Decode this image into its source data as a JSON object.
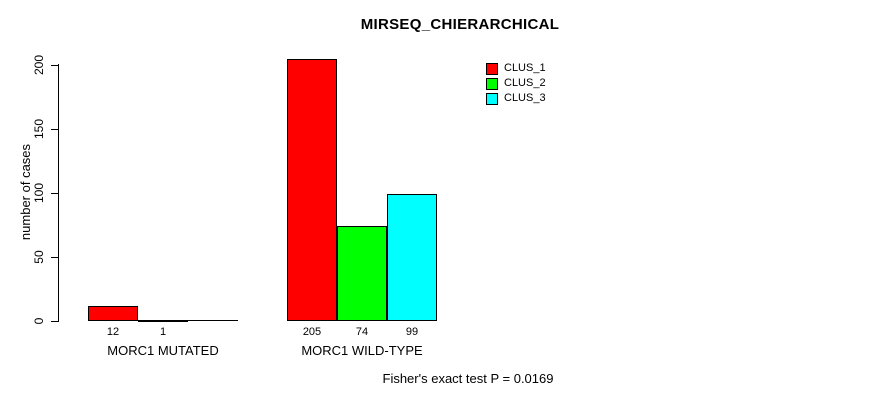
{
  "chart_data": {
    "type": "bar",
    "title": "MIRSEQ_CHIERARCHICAL",
    "ylabel": "number of cases",
    "xlabel": "",
    "ylim": [
      0,
      205
    ],
    "yticks": [
      0,
      50,
      100,
      150,
      200
    ],
    "grid": false,
    "legend_position": "top-right",
    "legend_border": false,
    "categories": [
      "MORC1 MUTATED",
      "MORC1 WILD-TYPE"
    ],
    "series": [
      {
        "name": "CLUS_1",
        "color": "#ff0000",
        "values": [
          12,
          205
        ]
      },
      {
        "name": "CLUS_2",
        "color": "#00ff00",
        "values": [
          1,
          74
        ]
      },
      {
        "name": "CLUS_3",
        "color": "#00ffff",
        "values": [
          0,
          99
        ]
      }
    ],
    "groups": [
      {
        "label": "MORC1 MUTATED",
        "bars": [
          {
            "series": "CLUS_1",
            "value": 12,
            "value_label": "12"
          },
          {
            "series": "CLUS_2",
            "value": 1,
            "value_label": "1"
          },
          {
            "series": "CLUS_3",
            "value": 0,
            "value_label": ""
          }
        ]
      },
      {
        "label": "MORC1 WILD-TYPE",
        "bars": [
          {
            "series": "CLUS_1",
            "value": 205,
            "value_label": "205"
          },
          {
            "series": "CLUS_2",
            "value": 74,
            "value_label": "74"
          },
          {
            "series": "CLUS_3",
            "value": 99,
            "value_label": "99"
          }
        ]
      }
    ],
    "annotation": "Fisher's exact test P = 0.0169",
    "colors": {
      "background": "#ffffff",
      "axis": "#000000",
      "text": "#000000"
    }
  }
}
